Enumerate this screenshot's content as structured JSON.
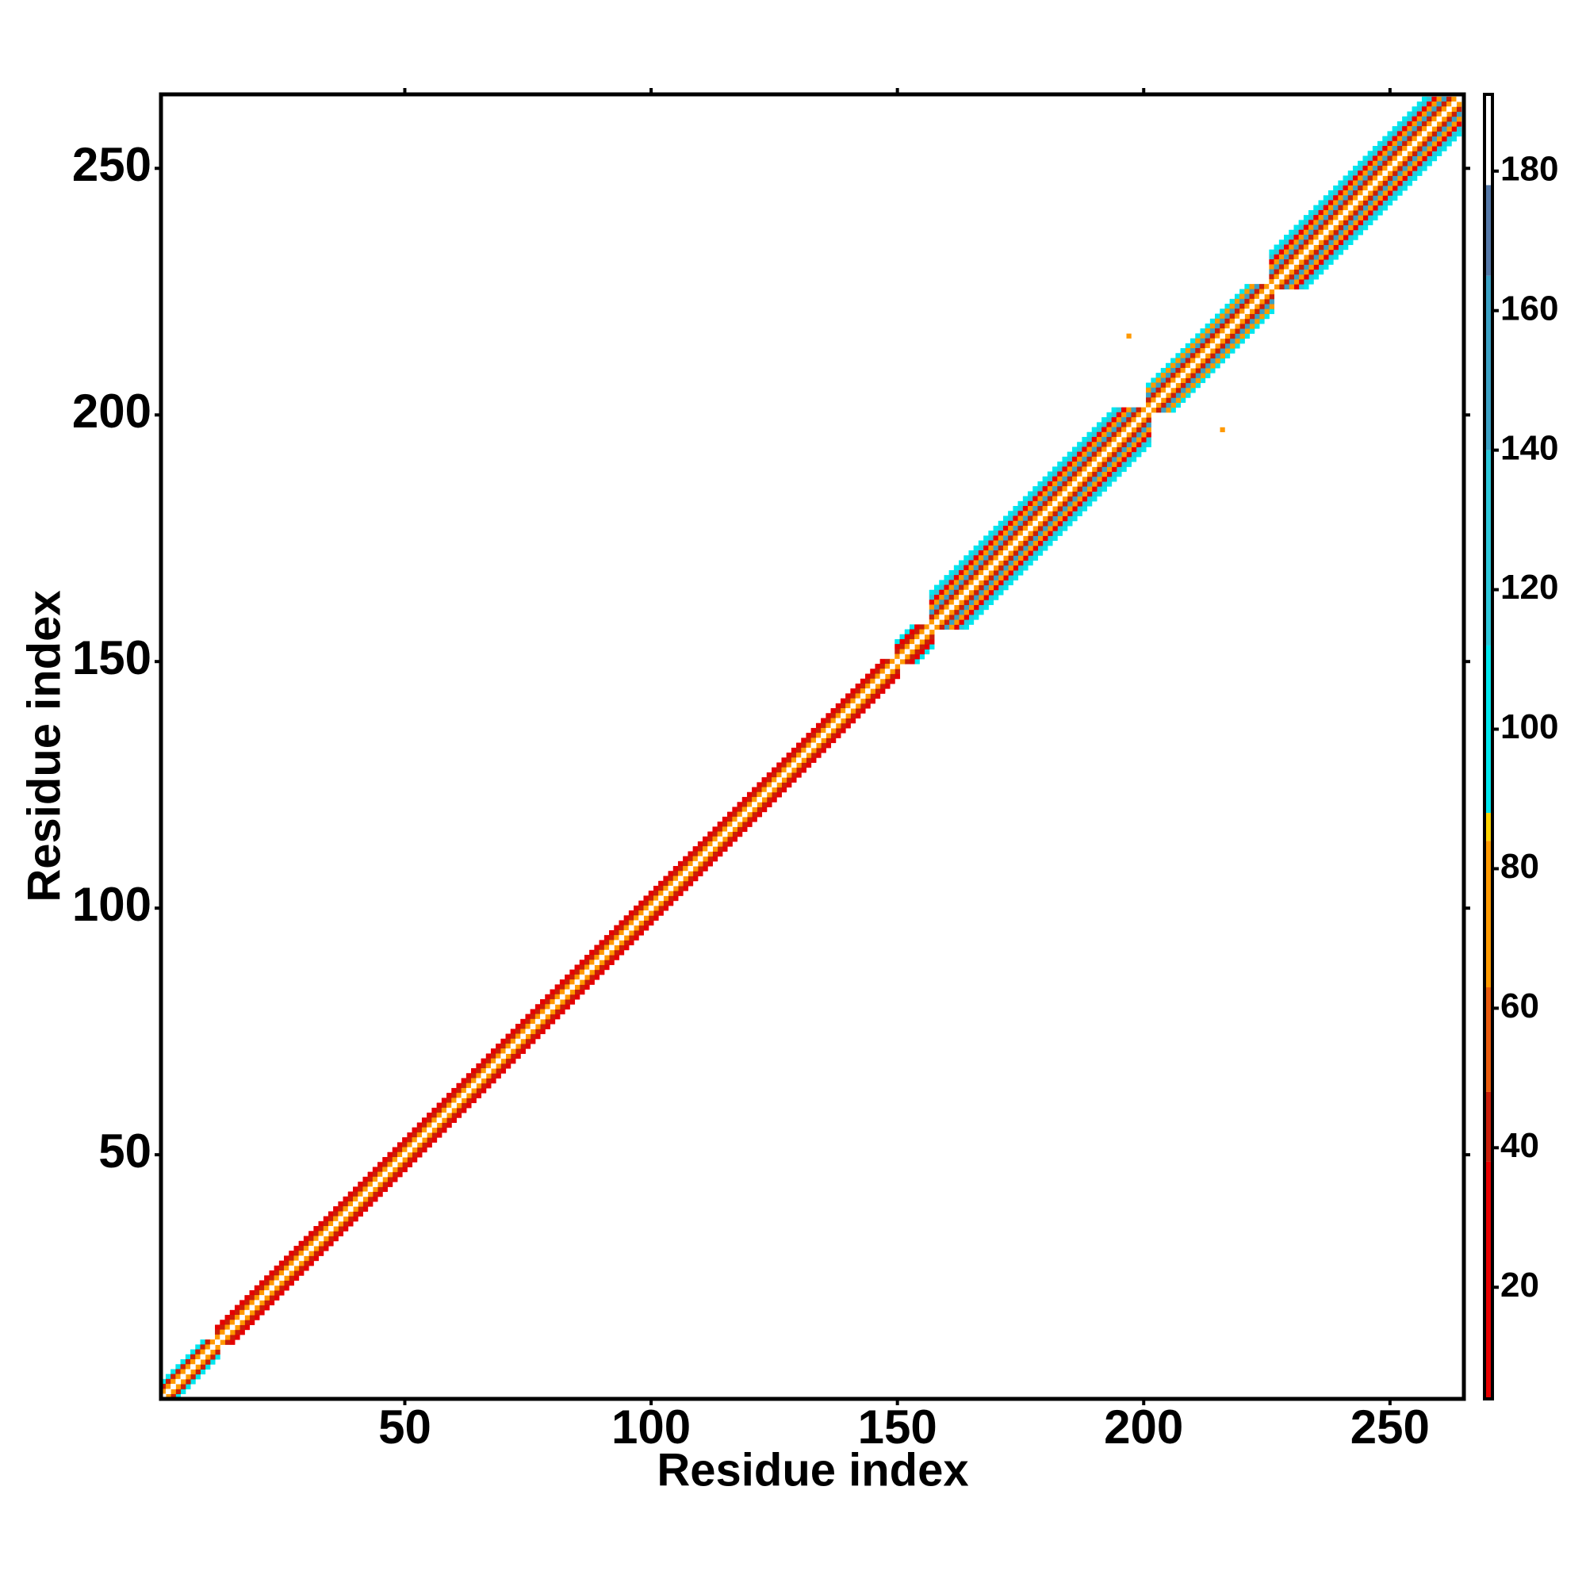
{
  "chart_data": {
    "type": "heatmap",
    "x_label": "Residue index",
    "y_label": "Residue index",
    "xlim": [
      0.5,
      265
    ],
    "ylim": [
      0.5,
      265
    ],
    "xticks": [
      50,
      100,
      150,
      200,
      250
    ],
    "yticks": [
      50,
      100,
      150,
      200,
      250
    ],
    "clim": [
      4,
      191
    ],
    "cticks": [
      20,
      40,
      60,
      80,
      100,
      120,
      140,
      160,
      180
    ],
    "colorscale": [
      {
        "value": 4,
        "color": "#e60000"
      },
      {
        "value": 38,
        "color": "#c81e0a"
      },
      {
        "value": 48,
        "color": "#e85a0c"
      },
      {
        "value": 63,
        "color": "#ff9900"
      },
      {
        "value": 84,
        "color": "#ffd200"
      },
      {
        "value": 88,
        "color": "#00e6ee"
      },
      {
        "value": 112,
        "color": "#2cc6da"
      },
      {
        "value": 140,
        "color": "#3aa0c4"
      },
      {
        "value": 165,
        "color": "#5478a8"
      },
      {
        "value": 178,
        "color": "#ffffff"
      }
    ],
    "bands": [
      {
        "start": 1,
        "end": 12,
        "offsets": [
          191,
          75,
          40,
          95
        ]
      },
      {
        "start": 12,
        "end": 150,
        "offsets": [
          191,
          75,
          45,
          20
        ]
      },
      {
        "start": 150,
        "end": 157,
        "offsets": [
          191,
          75,
          45,
          20,
          95
        ]
      },
      {
        "start": 157,
        "end": 201,
        "offsets": [
          191,
          75,
          45,
          150,
          75,
          30,
          130,
          95
        ]
      },
      {
        "start": 201,
        "end": 226,
        "offsets": [
          191,
          75,
          45,
          150,
          70,
          95
        ]
      },
      {
        "start": 226,
        "end": 264,
        "offsets": [
          191,
          75,
          45,
          150,
          75,
          30,
          130,
          95
        ]
      }
    ],
    "points": {
      "x": [
        197,
        216
      ],
      "y": [
        216,
        197
      ],
      "values": [
        70,
        70
      ]
    }
  }
}
